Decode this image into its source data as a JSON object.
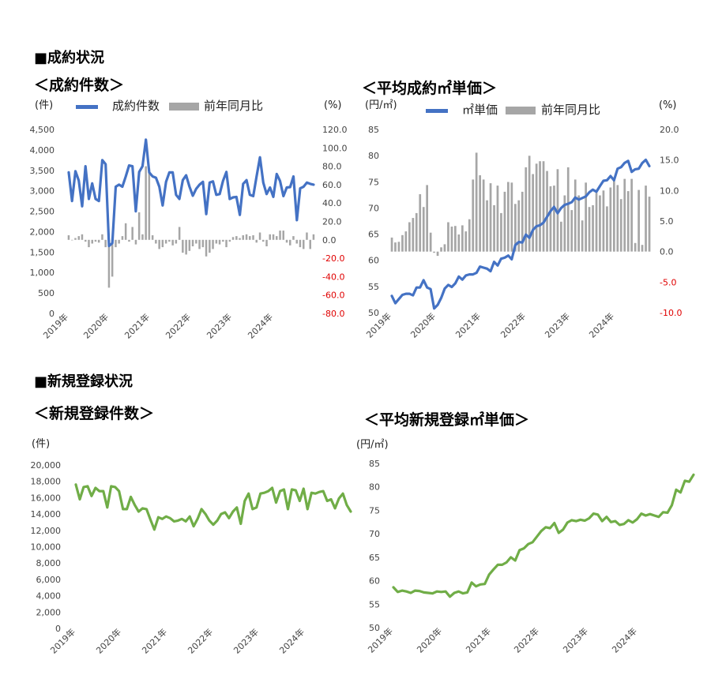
{
  "sections": {
    "contracts": "■成約状況",
    "listings": "■新規登録状況"
  },
  "chart_data": [
    {
      "id": "contracts_count",
      "type": "line+bar",
      "title": "＜成約件数＞",
      "left_unit": "(件)",
      "right_unit": "(%)",
      "left_ylim": [
        0,
        4500
      ],
      "left_ticks": [
        "4,500",
        "4,000",
        "3,500",
        "3,000",
        "2,500",
        "2,000",
        "1,500",
        "1,000",
        "500",
        "0"
      ],
      "right_ylim": [
        -80,
        120
      ],
      "right_ticks": [
        "120.0",
        "100.0",
        "80.0",
        "60.0",
        "40.0",
        "20.0",
        "0.0",
        "-20.0",
        "-40.0",
        "-60.0",
        "-80.0"
      ],
      "x_labels": [
        "2019年",
        "2020年",
        "2021年",
        "2022年",
        "2023年",
        "2024年"
      ],
      "legend": [
        "成約件数",
        "前年同月比"
      ],
      "colors": {
        "line": "#4472c4",
        "bar": "#a6a6a6",
        "neg": "#e00000"
      },
      "series": [
        {
          "name": "成約件数",
          "values": [
            3450,
            2750,
            3480,
            3250,
            2620,
            3600,
            2800,
            3180,
            2800,
            2750,
            3750,
            3650,
            1650,
            1720,
            3100,
            3150,
            3100,
            3350,
            3620,
            3600,
            2500,
            3460,
            3600,
            4250,
            3450,
            3350,
            3320,
            3100,
            2640,
            3220,
            3450,
            3450,
            2900,
            2800,
            3260,
            3380,
            3100,
            2880,
            3050,
            3150,
            3220,
            2430,
            3200,
            3230,
            2900,
            2920,
            3240,
            3460,
            2800,
            2840,
            2850,
            2410,
            3170,
            3260,
            2900,
            2870,
            3350,
            3820,
            3200,
            2920,
            3080,
            2850,
            3410,
            3240,
            2870,
            3080,
            3090,
            3350,
            2280,
            3060,
            3100,
            3200,
            3170,
            3150
          ]
        },
        {
          "name": "前年同月比",
          "values": [
            5,
            0,
            2,
            4,
            6,
            -2,
            -8,
            -4,
            -2,
            -3,
            6,
            -8,
            -52,
            -40,
            -8,
            -4,
            4,
            18,
            -2,
            14,
            -5,
            30,
            6,
            80,
            78,
            5,
            -4,
            -10,
            -8,
            -4,
            -2,
            -6,
            -4,
            14,
            -14,
            -16,
            -12,
            -7,
            -4,
            -10,
            -8,
            -18,
            -14,
            -10,
            -4,
            -5,
            -2,
            -8,
            -2,
            3,
            4,
            2,
            5,
            6,
            4,
            5,
            -3,
            8,
            -2,
            -7,
            6,
            6,
            4,
            10,
            10,
            -3,
            -6,
            4,
            -4,
            -8,
            -10,
            8,
            -10,
            6
          ]
        }
      ]
    },
    {
      "id": "contracts_price",
      "type": "line+bar",
      "title": "＜平均成約㎡単価＞",
      "left_unit": "(円/㎡)",
      "right_unit": "(%)",
      "left_ylim": [
        50,
        85
      ],
      "left_ticks": [
        "85",
        "80",
        "75",
        "70",
        "65",
        "60",
        "55",
        "50"
      ],
      "right_ylim": [
        -10,
        20
      ],
      "right_ticks": [
        "20.0",
        "15.0",
        "10.0",
        "5.0",
        "0.0",
        "-5.0",
        "-10.0"
      ],
      "x_labels": [
        "2019年",
        "2020年",
        "2021年",
        "2022年",
        "2023年",
        "2024年"
      ],
      "legend": [
        "㎡単価",
        "前年同月比"
      ],
      "colors": {
        "line": "#4472c4",
        "bar": "#a6a6a6",
        "neg": "#e00000"
      },
      "series": [
        {
          "name": "㎡単価",
          "values": [
            53.2,
            51.8,
            52.6,
            53.4,
            53.6,
            53.6,
            53.3,
            54.8,
            54.8,
            56.2,
            54.8,
            54.5,
            50.8,
            51.5,
            52.8,
            54.6,
            55.3,
            54.9,
            55.6,
            56.9,
            56.3,
            57.1,
            57.3,
            57.3,
            57.6,
            58.8,
            58.6,
            58.4,
            57.9,
            59.7,
            59.0,
            60.3,
            60.5,
            60.9,
            60.2,
            62.9,
            63.5,
            63.4,
            64.9,
            64.3,
            65.8,
            66.5,
            66.7,
            67.2,
            68.3,
            69.4,
            70.2,
            69.0,
            70.0,
            70.6,
            70.8,
            71.1,
            72.0,
            71.6,
            71.9,
            72.2,
            73.0,
            73.5,
            73.1,
            74.2,
            75.2,
            75.3,
            76.1,
            75.3,
            77.5,
            77.8,
            78.6,
            79.0,
            76.9,
            77.4,
            77.5,
            78.6,
            79.2,
            78.0
          ]
        },
        {
          "name": "前年同月比",
          "values": [
            2.3,
            1.5,
            1.6,
            2.7,
            3.3,
            4.8,
            5.5,
            6.3,
            9.4,
            7.3,
            10.9,
            3.1,
            -0.2,
            -0.7,
            0.7,
            1.2,
            4.8,
            4.1,
            4.2,
            2.8,
            4.3,
            3.3,
            5.3,
            11.8,
            16.2,
            12.5,
            11.8,
            8.4,
            11.2,
            7.6,
            10.8,
            6.3,
            9.8,
            11.4,
            11.3,
            7.8,
            8.4,
            9.8,
            13.8,
            15.7,
            12.7,
            14.4,
            14.8,
            14.8,
            13.2,
            10.7,
            10.8,
            13.5,
            4.9,
            9.2,
            13.8,
            6.8,
            11.8,
            9.2,
            5.1,
            11.3,
            7.3,
            7.6,
            9.6,
            9.2,
            10.0,
            7.4,
            10.5,
            12.0,
            10.9,
            8.6,
            11.9,
            9.9,
            11.9,
            1.4,
            10.1,
            1.1,
            10.8,
            9.0
          ]
        }
      ]
    },
    {
      "id": "listings_count",
      "type": "line",
      "title": "＜新規登録件数＞",
      "left_unit": "(件)",
      "left_ylim": [
        0,
        20000
      ],
      "left_ticks": [
        "20,000",
        "18,000",
        "16,000",
        "14,000",
        "12,000",
        "10,000",
        "8,000",
        "6,000",
        "4,000",
        "2,000",
        "0"
      ],
      "x_labels": [
        "2019年",
        "2020年",
        "2021年",
        "2022年",
        "2023年",
        "2024年"
      ],
      "colors": {
        "line": "#70ad47"
      },
      "series": [
        {
          "name": "新規登録件数",
          "values": [
            17600,
            15800,
            17300,
            17400,
            16200,
            17200,
            16800,
            16800,
            14800,
            17400,
            17300,
            16800,
            14600,
            14600,
            16100,
            15100,
            14300,
            14700,
            14600,
            13300,
            12100,
            13600,
            13400,
            13700,
            13500,
            13100,
            13200,
            13400,
            13100,
            13700,
            12500,
            13400,
            14600,
            14000,
            13200,
            12700,
            13200,
            14000,
            14200,
            13500,
            14300,
            14800,
            12800,
            15600,
            16500,
            14600,
            14800,
            16500,
            16600,
            16800,
            17200,
            15400,
            16800,
            17000,
            14600,
            17000,
            16900,
            15600,
            17100,
            14600,
            16600,
            16500,
            16700,
            16800,
            15600,
            15800,
            14700,
            15900,
            16500,
            15100,
            14300
          ]
        }
      ]
    },
    {
      "id": "listings_price",
      "type": "line",
      "title": "＜平均新規登録㎡単価＞",
      "left_unit": "(円/㎡)",
      "left_ylim": [
        50,
        85
      ],
      "left_ticks": [
        "85",
        "80",
        "75",
        "70",
        "65",
        "60",
        "55",
        "50"
      ],
      "x_labels": [
        "2019年",
        "2020年",
        "2021年",
        "2022年",
        "2023年",
        "2024年"
      ],
      "colors": {
        "line": "#70ad47"
      },
      "series": [
        {
          "name": "新規登録㎡単価",
          "values": [
            58.6,
            57.6,
            57.9,
            57.7,
            57.4,
            57.9,
            57.8,
            57.5,
            57.4,
            57.3,
            57.7,
            57.6,
            57.7,
            56.6,
            57.4,
            57.7,
            57.3,
            57.5,
            59.6,
            58.8,
            59.2,
            59.3,
            61.3,
            62.4,
            63.4,
            63.4,
            63.9,
            65.0,
            64.3,
            66.5,
            66.9,
            67.8,
            68.2,
            69.4,
            70.6,
            71.4,
            71.2,
            72.3,
            70.2,
            70.9,
            72.4,
            72.9,
            72.7,
            73.0,
            72.8,
            73.3,
            74.3,
            74.1,
            72.7,
            73.6,
            72.5,
            72.7,
            71.9,
            72.1,
            72.9,
            72.4,
            73.1,
            74.3,
            73.9,
            74.2,
            73.9,
            73.6,
            74.6,
            74.5,
            76.1,
            79.4,
            78.8,
            81.3,
            81.1,
            82.6
          ]
        }
      ]
    }
  ]
}
